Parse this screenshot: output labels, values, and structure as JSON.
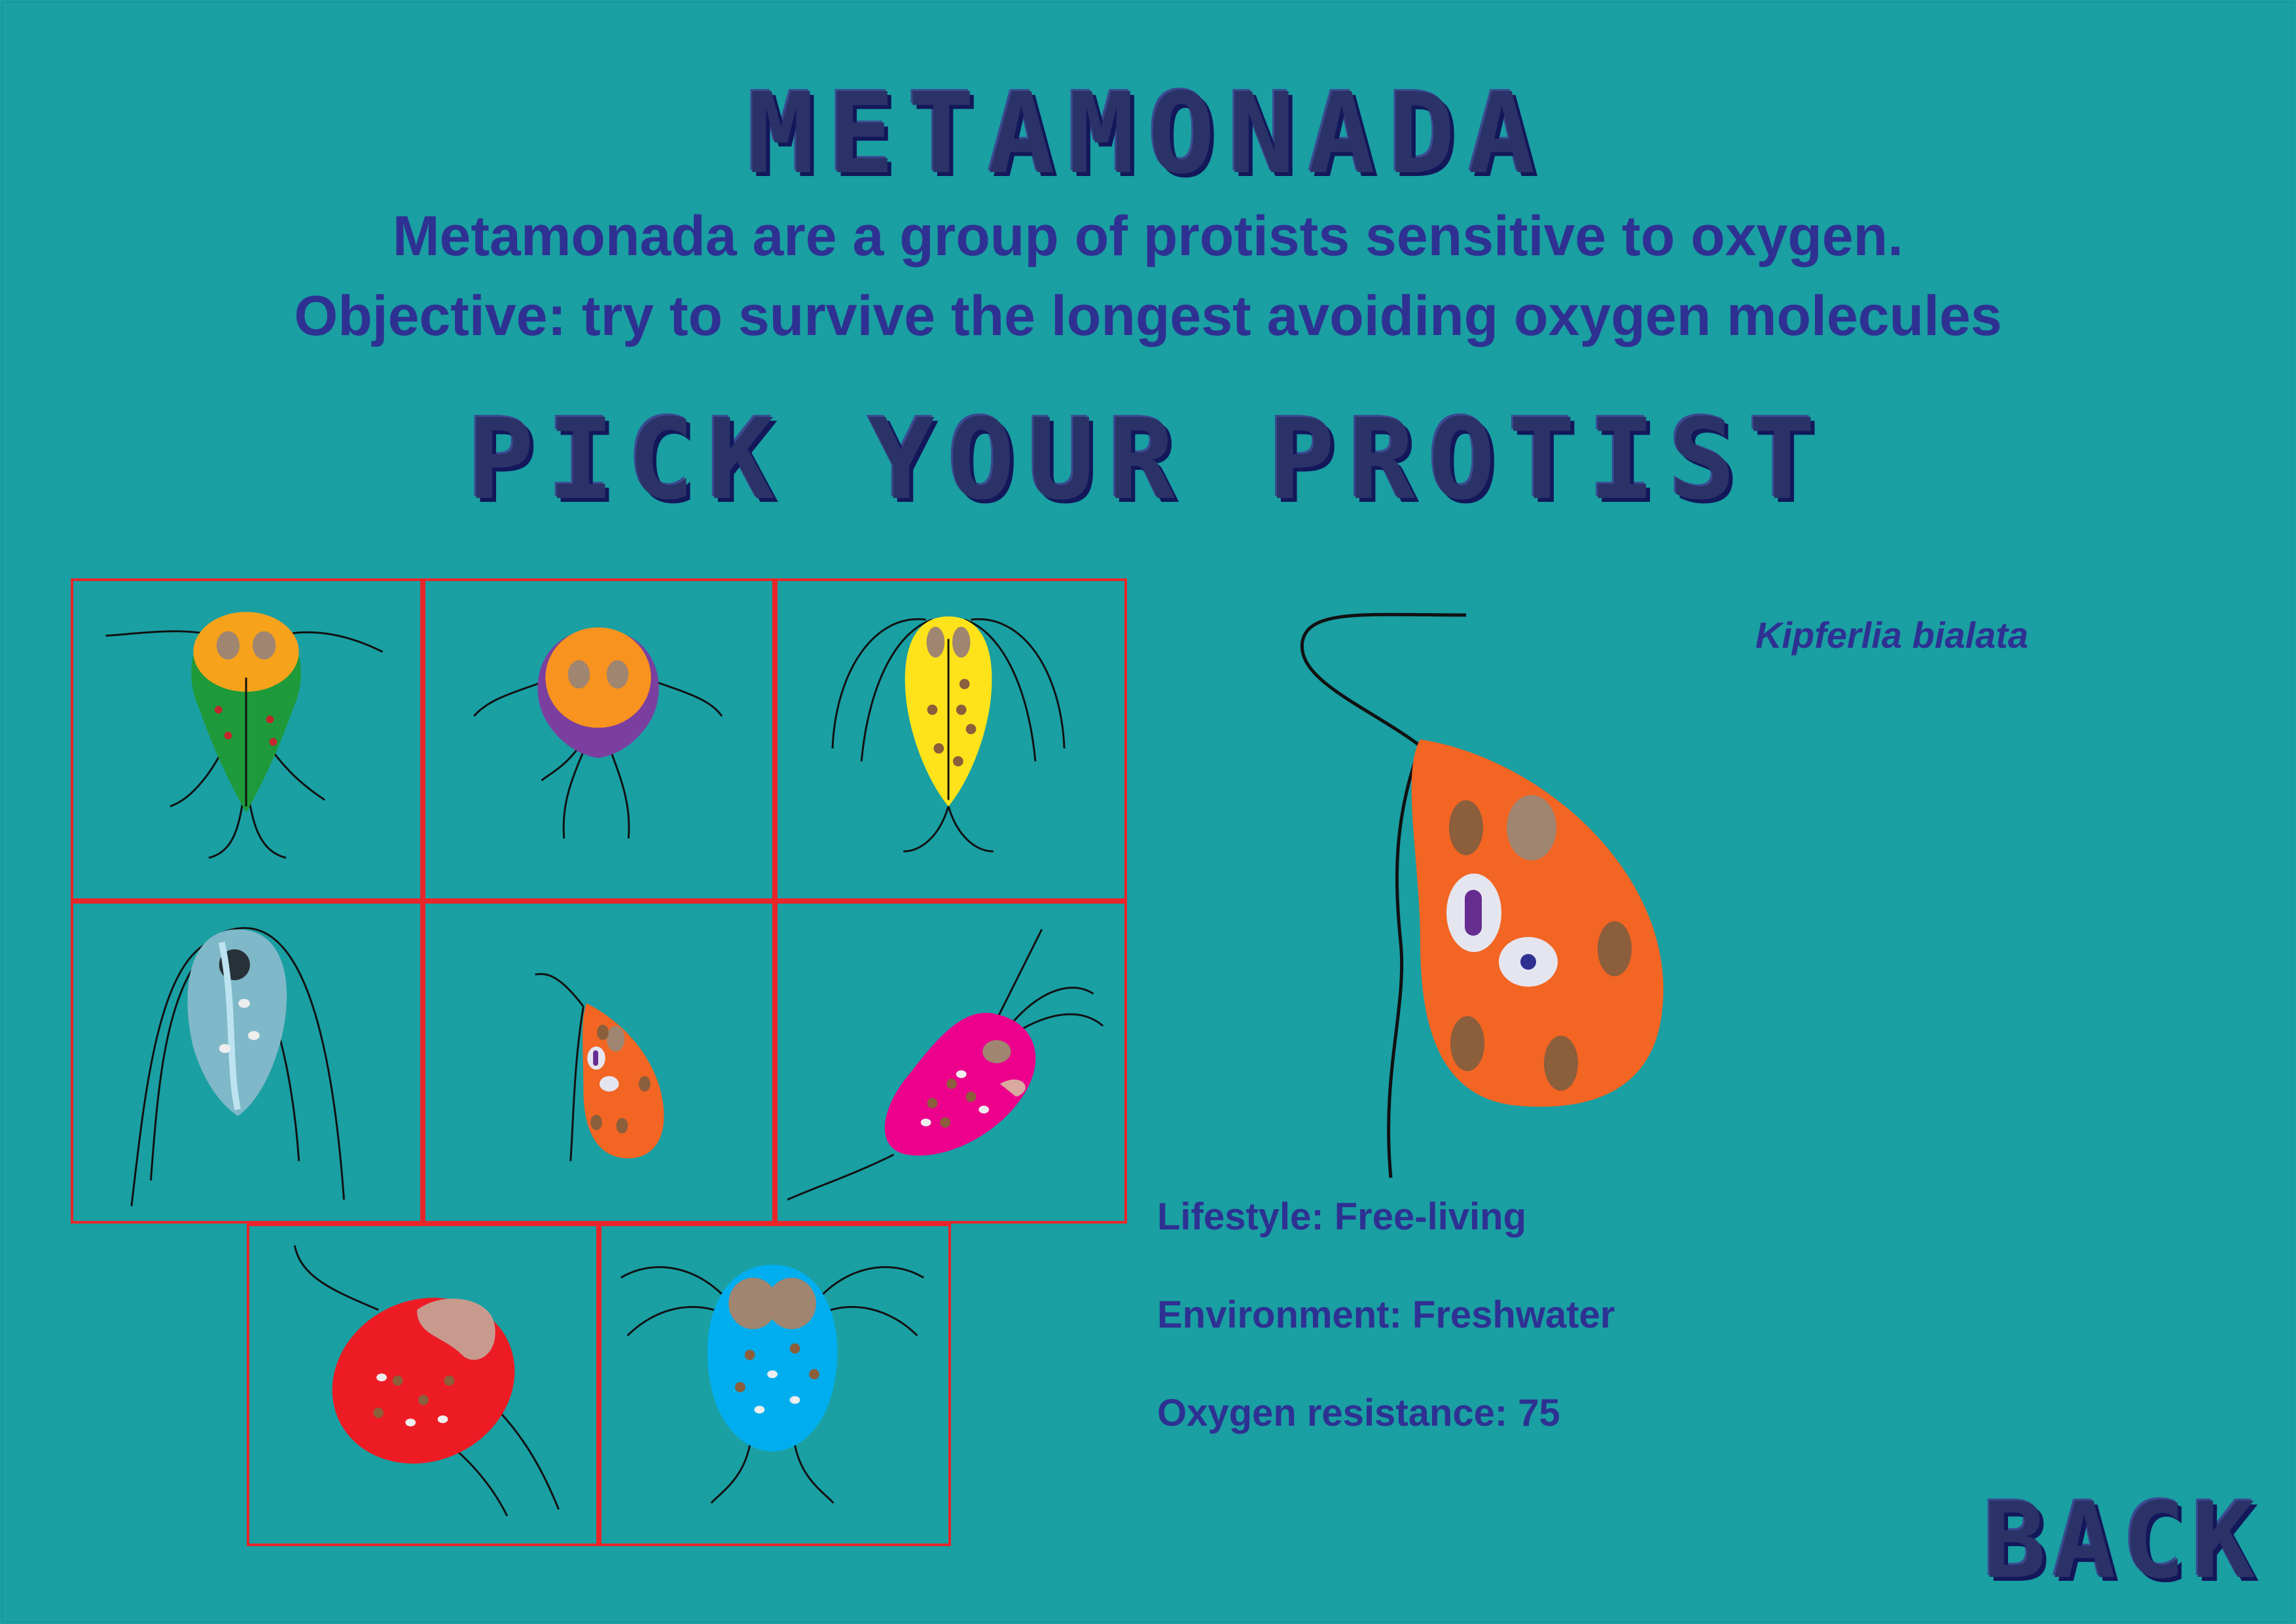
{
  "game_title": "METAMONADA",
  "description_line1": "Metamonada are a group of protists sensitive to oxygen.",
  "description_line2": "Objective: try to survive the longest avoiding oxygen molecules",
  "pick_title": "PICK YOUR PROTIST",
  "grid": {
    "cells": [
      {
        "body_color": "#1f9a3a",
        "head_color": "#f7a21b"
      },
      {
        "body_color": "#7b3fa0",
        "head_color": "#f7931e"
      },
      {
        "body_color": "#ffe31a"
      },
      {
        "body_color": "#7fb8c8"
      },
      {
        "body_color": "#f26522"
      },
      {
        "body_color": "#ec008c"
      },
      {
        "body_color": "#ed1c24"
      },
      {
        "body_color": "#00aeef"
      }
    ]
  },
  "selected": {
    "species": "Kipferlia bialata",
    "body_color": "#f26522",
    "lifestyle": "Lifestyle: Free-living",
    "environment": "Environment: Freshwater",
    "oxygen_resistance": "Oxygen resistance: 75"
  },
  "back_label": "BACK",
  "colors": {
    "background": "#1a9fa3",
    "text": "#2e3192",
    "grid_border": "#e8262a"
  }
}
